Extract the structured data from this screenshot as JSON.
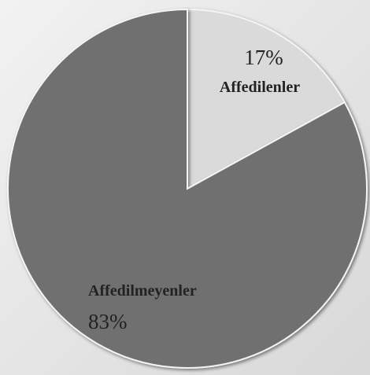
{
  "chart_data": {
    "type": "pie",
    "categories": [
      "Affedilenler",
      "Affedilmeyenler"
    ],
    "values": [
      17,
      83
    ],
    "value_labels": [
      "17%",
      "83%"
    ],
    "colors": [
      "#dadada",
      "#6f6f6f"
    ]
  }
}
